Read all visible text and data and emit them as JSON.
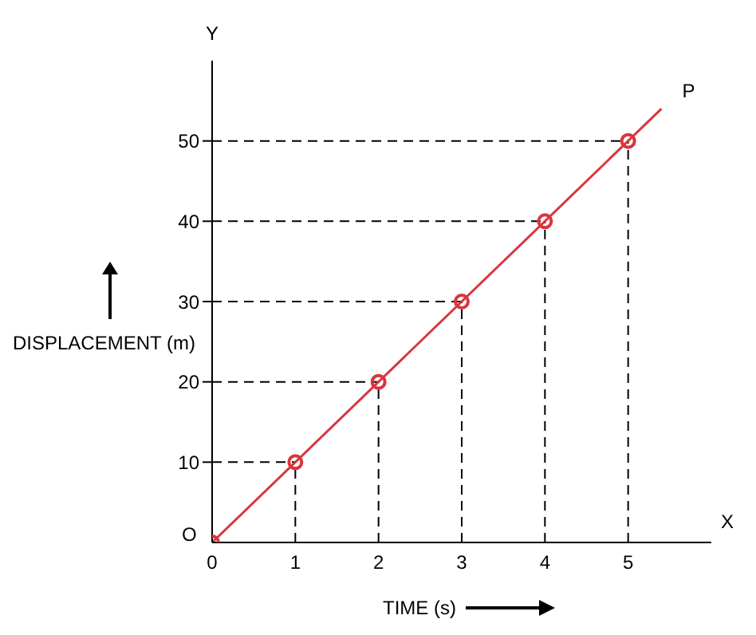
{
  "chart_data": {
    "type": "line",
    "xlabel": "TIME (s)",
    "ylabel": "DISPLACEMENT (m)",
    "xlim": [
      0,
      6
    ],
    "ylim": [
      0,
      60
    ],
    "xticks": [
      0,
      1,
      2,
      3,
      4,
      5
    ],
    "yticks": [
      10,
      20,
      30,
      40,
      50
    ],
    "grid": false,
    "ref_lines": [
      {
        "axis": "y",
        "value": 10,
        "color": "#000000",
        "line_style": "dashed"
      },
      {
        "axis": "y",
        "value": 20,
        "color": "#000000",
        "line_style": "dashed"
      },
      {
        "axis": "y",
        "value": 30,
        "color": "#000000",
        "line_style": "dashed"
      },
      {
        "axis": "y",
        "value": 40,
        "color": "#000000",
        "line_style": "dashed"
      },
      {
        "axis": "y",
        "value": 50,
        "color": "#000000",
        "line_style": "dashed"
      },
      {
        "axis": "x",
        "value": 1,
        "color": "#000000",
        "line_style": "dashed"
      },
      {
        "axis": "x",
        "value": 2,
        "color": "#000000",
        "line_style": "dashed"
      },
      {
        "axis": "x",
        "value": 3,
        "color": "#000000",
        "line_style": "dashed"
      },
      {
        "axis": "x",
        "value": 4,
        "color": "#000000",
        "line_style": "dashed"
      },
      {
        "axis": "x",
        "value": 5,
        "color": "#000000",
        "line_style": "dashed"
      }
    ],
    "annotations": [
      "Y",
      "X",
      {
        "text": "O",
        "x": 0,
        "y": 0
      },
      {
        "text": "P",
        "x": 5.4,
        "y": 54
      }
    ],
    "series": [
      {
        "color": "#d9363e",
        "x": [
          0,
          5.4
        ],
        "values": [
          0,
          54
        ],
        "marker": "none"
      },
      {
        "type": "scatter",
        "color": "#d9363e",
        "x": [
          0,
          1,
          2,
          3,
          4,
          5
        ],
        "values": [
          0,
          10,
          20,
          30,
          40,
          50
        ],
        "marker": "circle"
      }
    ]
  }
}
